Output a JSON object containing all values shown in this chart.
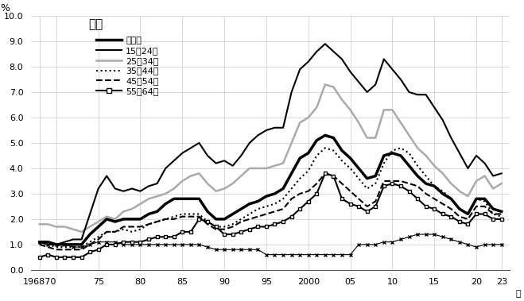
{
  "title": "女性",
  "ylabel": "%",
  "ylim": [
    0.0,
    10.0
  ],
  "yticks": [
    0.0,
    1.0,
    2.0,
    3.0,
    4.0,
    5.0,
    6.0,
    7.0,
    8.0,
    9.0,
    10.0
  ],
  "years": [
    1968,
    1969,
    1970,
    1971,
    1972,
    1973,
    1974,
    1975,
    1976,
    1977,
    1978,
    1979,
    1980,
    1981,
    1982,
    1983,
    1984,
    1985,
    1986,
    1987,
    1988,
    1989,
    1990,
    1991,
    1992,
    1993,
    1994,
    1995,
    1996,
    1997,
    1998,
    1999,
    2000,
    2001,
    2002,
    2003,
    2004,
    2005,
    2006,
    2007,
    2008,
    2009,
    2010,
    2011,
    2012,
    2013,
    2014,
    2015,
    2016,
    2017,
    2018,
    2019,
    2020,
    2021,
    2022,
    2023
  ],
  "xtick_positions": [
    1968,
    1970,
    1975,
    1980,
    1985,
    1990,
    1995,
    2000,
    2005,
    2010,
    2015,
    2020,
    2023
  ],
  "xtick_labels": [
    "196870",
    "",
    "75",
    "80",
    "85",
    "90",
    "95",
    "2000",
    "05",
    "10",
    "15",
    "20",
    "23"
  ],
  "series": {
    "年齢計": {
      "color": "#000000",
      "linewidth": 2.5,
      "linestyle": "solid",
      "marker": null,
      "values": [
        1.1,
        1.1,
        1.0,
        1.0,
        1.0,
        1.0,
        1.4,
        1.7,
        2.0,
        1.9,
        2.0,
        2.0,
        2.0,
        2.2,
        2.3,
        2.6,
        2.8,
        2.8,
        2.8,
        2.8,
        2.3,
        2.0,
        2.0,
        2.2,
        2.4,
        2.6,
        2.7,
        2.9,
        3.0,
        3.2,
        3.8,
        4.4,
        4.6,
        5.1,
        5.3,
        5.2,
        4.7,
        4.4,
        4.0,
        3.6,
        3.7,
        4.5,
        4.6,
        4.5,
        4.1,
        3.7,
        3.4,
        3.3,
        3.0,
        2.8,
        2.4,
        2.2,
        2.8,
        2.8,
        2.4,
        2.3
      ]
    },
    "15～24歳": {
      "color": "#000000",
      "linewidth": 1.5,
      "linestyle": "solid",
      "marker": null,
      "values": [
        1.1,
        1.0,
        1.0,
        1.1,
        1.2,
        1.2,
        2.2,
        3.2,
        3.7,
        3.2,
        3.1,
        3.2,
        3.1,
        3.3,
        3.4,
        4.0,
        4.3,
        4.6,
        4.8,
        5.0,
        4.5,
        4.2,
        4.3,
        4.1,
        4.5,
        5.0,
        5.3,
        5.5,
        5.6,
        5.6,
        7.0,
        7.9,
        8.2,
        8.6,
        8.9,
        8.6,
        8.3,
        7.8,
        7.4,
        7.0,
        7.3,
        8.3,
        7.9,
        7.5,
        7.0,
        6.9,
        6.9,
        6.4,
        5.9,
        5.2,
        4.6,
        4.0,
        4.5,
        4.2,
        3.7,
        3.8
      ]
    },
    "25～34歳": {
      "color": "#aaaaaa",
      "linewidth": 1.8,
      "linestyle": "solid",
      "marker": null,
      "values": [
        1.8,
        1.8,
        1.7,
        1.7,
        1.6,
        1.5,
        1.7,
        1.9,
        2.1,
        2.0,
        2.3,
        2.4,
        2.6,
        2.8,
        2.9,
        3.0,
        3.2,
        3.5,
        3.7,
        3.8,
        3.4,
        3.1,
        3.2,
        3.4,
        3.7,
        4.0,
        4.0,
        4.0,
        4.1,
        4.2,
        5.0,
        5.8,
        6.0,
        6.4,
        7.3,
        7.2,
        6.7,
        6.3,
        5.8,
        5.2,
        5.2,
        6.3,
        6.3,
        5.8,
        5.3,
        4.8,
        4.5,
        4.1,
        3.8,
        3.4,
        3.1,
        2.9,
        3.5,
        3.7,
        3.2,
        3.4
      ]
    },
    "35～44歳": {
      "color": "#000000",
      "linewidth": 1.5,
      "linestyle": "dotted",
      "marker": null,
      "values": [
        1.1,
        1.0,
        0.9,
        0.9,
        0.9,
        0.9,
        1.1,
        1.3,
        1.5,
        1.5,
        1.6,
        1.5,
        1.6,
        1.8,
        1.9,
        2.0,
        2.1,
        2.2,
        2.2,
        2.2,
        1.9,
        1.7,
        1.7,
        1.8,
        2.0,
        2.2,
        2.4,
        2.5,
        2.6,
        2.8,
        3.2,
        3.6,
        3.9,
        4.5,
        4.8,
        4.7,
        4.3,
        4.0,
        3.6,
        3.2,
        3.4,
        4.2,
        4.7,
        4.8,
        4.6,
        4.1,
        3.7,
        3.3,
        3.1,
        2.8,
        2.4,
        2.2,
        2.8,
        2.7,
        2.2,
        2.1
      ]
    },
    "45～54歳": {
      "color": "#000000",
      "linewidth": 1.5,
      "linestyle": "dashed",
      "marker": null,
      "values": [
        1.0,
        0.9,
        0.8,
        0.8,
        0.8,
        0.8,
        1.0,
        1.2,
        1.5,
        1.5,
        1.7,
        1.7,
        1.7,
        1.8,
        1.9,
        2.0,
        2.0,
        2.1,
        2.1,
        2.1,
        1.8,
        1.6,
        1.6,
        1.7,
        1.9,
        2.0,
        2.1,
        2.2,
        2.3,
        2.4,
        2.8,
        3.0,
        3.1,
        3.4,
        3.8,
        3.7,
        3.4,
        3.1,
        2.8,
        2.5,
        2.7,
        3.5,
        3.5,
        3.5,
        3.4,
        3.3,
        3.0,
        2.8,
        2.6,
        2.4,
        2.1,
        2.0,
        2.5,
        2.5,
        2.2,
        2.2
      ]
    },
    "55～64歳": {
      "color": "#000000",
      "linewidth": 1.5,
      "linestyle": "solid",
      "marker": "s",
      "markersize": 3.5,
      "markerfacecolor": "white",
      "markeredgecolor": "#000000",
      "values": [
        0.5,
        0.6,
        0.5,
        0.5,
        0.5,
        0.5,
        0.7,
        0.8,
        1.0,
        1.0,
        1.1,
        1.1,
        1.1,
        1.2,
        1.3,
        1.3,
        1.3,
        1.5,
        1.5,
        2.0,
        1.9,
        1.7,
        1.4,
        1.4,
        1.5,
        1.6,
        1.7,
        1.7,
        1.8,
        1.9,
        2.1,
        2.4,
        2.7,
        3.0,
        3.8,
        3.7,
        2.8,
        2.6,
        2.5,
        2.3,
        2.5,
        3.3,
        3.4,
        3.3,
        3.1,
        2.8,
        2.5,
        2.4,
        2.2,
        2.1,
        1.9,
        1.8,
        2.2,
        2.2,
        2.0,
        2.0
      ]
    }
  },
  "extra_series": {
    "color": "#000000",
    "linewidth": 0.8,
    "linestyle": "solid",
    "marker": "x",
    "markersize": 3,
    "values": [
      1.1,
      1.0,
      1.0,
      1.0,
      0.9,
      0.9,
      1.0,
      1.1,
      1.1,
      1.1,
      1.0,
      1.0,
      1.0,
      1.0,
      1.0,
      1.0,
      1.0,
      1.0,
      1.0,
      1.0,
      0.9,
      0.8,
      0.8,
      0.8,
      0.8,
      0.8,
      0.8,
      0.6,
      0.6,
      0.6,
      0.6,
      0.6,
      0.6,
      0.6,
      0.6,
      0.6,
      0.6,
      0.6,
      1.0,
      1.0,
      1.0,
      1.1,
      1.1,
      1.2,
      1.3,
      1.4,
      1.4,
      1.4,
      1.3,
      1.2,
      1.1,
      1.0,
      0.9,
      1.0,
      1.0,
      1.0
    ]
  },
  "legend_labels": [
    "年齢計",
    "15～24歳",
    "25～34歳",
    "35～44歳",
    "45～54歳",
    "55～64歳"
  ]
}
